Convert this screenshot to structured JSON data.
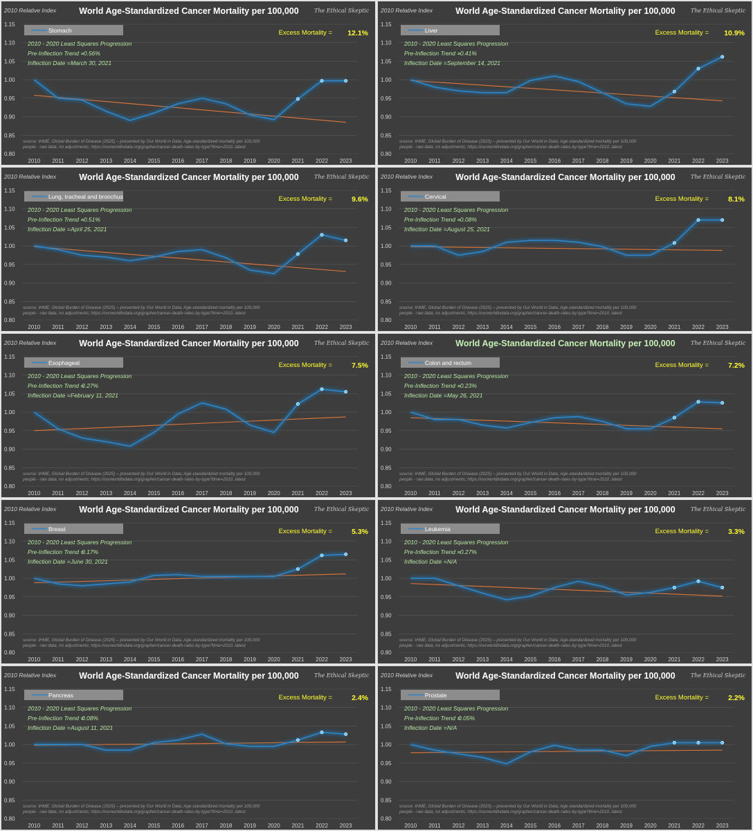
{
  "colors": {
    "panel_bg": "#3d3d3d",
    "grid": "#595959",
    "series": "#2e86c8",
    "series_glow": "#1f6fa8",
    "marker": "#5ec8ff",
    "trend": "#e2773a",
    "excess": "#ffff33",
    "note": "#b7e6a3"
  },
  "common": {
    "yaxis_title": "2010 Relative Index",
    "brand": "The Ethical Skeptic",
    "excess_label": "Excess Mortality =",
    "method": "2010 - 2020 Least Squares Progression",
    "trend_prefix": "Pre-Inflection Trend =",
    "inflection_prefix": "Inflection Date =",
    "source_line1": "source: IHME, Global Burden of Disease (2025) – presented by Our World in Data; Age-standardized mortality per 100,000",
    "source_line2": "people - raw data, no adjustments; https://ourworldindata.org/grapher/cancer-death-rates-by-type?time=2010..latest"
  },
  "chart_data": [
    {
      "type": "line",
      "title": "World Age-Standardized Cancer Mortality per 100,000",
      "title_color": "#ffffff",
      "series_name": "Stomach",
      "ylabel": "2010 Relative Index",
      "x": [
        "2010",
        "2011",
        "2012",
        "2013",
        "2014",
        "2015",
        "2016",
        "2017",
        "2018",
        "2019",
        "2020",
        "2021",
        "2022",
        "2023"
      ],
      "values": [
        1.0,
        0.95,
        0.945,
        0.915,
        0.89,
        0.91,
        0.935,
        0.95,
        0.935,
        0.905,
        0.892,
        0.948,
        0.997,
        0.997
      ],
      "markers_from_index": 11,
      "trend": [
        0.958,
        0.885
      ],
      "excess": "12.1%",
      "pre_trend": "-0.56%",
      "inflection_date": "March 30, 2021",
      "ylim": [
        0.8,
        1.15
      ],
      "yticks": [
        "0.80",
        "0.85",
        "0.90",
        "0.95",
        "1.00",
        "1.05",
        "1.10",
        "1.15"
      ]
    },
    {
      "type": "line",
      "title": "World Age-Standardized Cancer Mortality per 100,000",
      "title_color": "#ffffff",
      "series_name": "Liver",
      "ylabel": "2010 Relative Index",
      "x": [
        "2010",
        "2011",
        "2012",
        "2013",
        "2014",
        "2015",
        "2016",
        "2017",
        "2018",
        "2019",
        "2020",
        "2021",
        "2022",
        "2023"
      ],
      "values": [
        1.0,
        0.98,
        0.97,
        0.965,
        0.965,
        0.998,
        1.01,
        0.995,
        0.965,
        0.935,
        0.928,
        0.968,
        1.03,
        1.062
      ],
      "markers_from_index": 11,
      "trend": [
        0.998,
        0.943
      ],
      "excess": "10.9%",
      "pre_trend": "-0.41%",
      "inflection_date": "September 14, 2021",
      "ylim": [
        0.8,
        1.15
      ],
      "yticks": [
        "0.80",
        "0.85",
        "0.90",
        "0.95",
        "1.00",
        "1.05",
        "1.10",
        "1.15"
      ]
    },
    {
      "type": "line",
      "title": "World Age-Standardized Cancer Mortality per 100,000",
      "title_color": "#ffffff",
      "series_name": "Lung, tracheal and bronchus",
      "ylabel": "2010 Relative Index",
      "x": [
        "2010",
        "2011",
        "2012",
        "2013",
        "2014",
        "2015",
        "2016",
        "2017",
        "2018",
        "2019",
        "2020",
        "2021",
        "2022",
        "2023"
      ],
      "values": [
        1.0,
        0.99,
        0.975,
        0.97,
        0.96,
        0.97,
        0.985,
        0.99,
        0.968,
        0.935,
        0.925,
        0.978,
        1.03,
        1.015
      ],
      "markers_from_index": 11,
      "trend": [
        0.998,
        0.931
      ],
      "excess": "9.6%",
      "pre_trend": "-0.51%",
      "inflection_date": "April 25, 2021",
      "ylim": [
        0.8,
        1.15
      ],
      "yticks": [
        "0.80",
        "0.85",
        "0.90",
        "0.95",
        "1.00",
        "1.05",
        "1.10",
        "1.15"
      ]
    },
    {
      "type": "line",
      "title": "World Age-Standardized Cancer Mortality per 100,000",
      "title_color": "#ffffff",
      "series_name": "Cervical",
      "ylabel": "2010 Relative Index",
      "x": [
        "2010",
        "2011",
        "2012",
        "2013",
        "2014",
        "2015",
        "2016",
        "2017",
        "2018",
        "2019",
        "2020",
        "2021",
        "2022",
        "2023"
      ],
      "values": [
        1.0,
        1.0,
        0.975,
        0.985,
        1.01,
        1.015,
        1.015,
        1.01,
        0.998,
        0.975,
        0.975,
        1.008,
        1.07,
        1.07
      ],
      "markers_from_index": 11,
      "trend": [
        0.998,
        0.988
      ],
      "excess": "8.1%",
      "pre_trend": "-0.08%",
      "inflection_date": "August 25, 2021",
      "ylim": [
        0.8,
        1.15
      ],
      "yticks": [
        "0.80",
        "0.85",
        "0.90",
        "0.95",
        "1.00",
        "1.05",
        "1.10",
        "1.15"
      ]
    },
    {
      "type": "line",
      "title": "World Age-Standardized Cancer Mortality per 100,000",
      "title_color": "#ffffff",
      "series_name": "Esophageal",
      "ylabel": "2010 Relative Index",
      "x": [
        "2010",
        "2011",
        "2012",
        "2013",
        "2014",
        "2015",
        "2016",
        "2017",
        "2018",
        "2019",
        "2020",
        "2021",
        "2022",
        "2023"
      ],
      "values": [
        1.0,
        0.955,
        0.93,
        0.92,
        0.908,
        0.945,
        0.995,
        1.025,
        1.008,
        0.965,
        0.945,
        1.022,
        1.062,
        1.055
      ],
      "markers_from_index": 11,
      "trend": [
        0.95,
        0.987
      ],
      "excess": "7.5%",
      "pre_trend": "0.27%",
      "inflection_date": "February 11, 2021",
      "ylim": [
        0.8,
        1.15
      ],
      "yticks": [
        "0.80",
        "0.85",
        "0.90",
        "0.95",
        "1.00",
        "1.05",
        "1.10",
        "1.15"
      ]
    },
    {
      "type": "line",
      "title": "World Age-Standardized Cancer Mortality per 100,000",
      "title_color": "#c6efb6",
      "series_name": "Colon and rectum",
      "ylabel": "2010 Relative Index",
      "x": [
        "2010",
        "2011",
        "2012",
        "2013",
        "2014",
        "2015",
        "2016",
        "2017",
        "2018",
        "2019",
        "2020",
        "2021",
        "2022",
        "2023"
      ],
      "values": [
        1.0,
        0.98,
        0.98,
        0.965,
        0.957,
        0.972,
        0.985,
        0.988,
        0.975,
        0.955,
        0.955,
        0.985,
        1.028,
        1.025
      ],
      "markers_from_index": 11,
      "trend": [
        0.985,
        0.955
      ],
      "excess": "7.2%",
      "pre_trend": "-0.23%",
      "inflection_date": "May 26, 2021",
      "ylim": [
        0.8,
        1.15
      ],
      "yticks": [
        "0.80",
        "0.85",
        "0.90",
        "0.95",
        "1.00",
        "1.05",
        "1.10",
        "1.15"
      ]
    },
    {
      "type": "line",
      "title": "World Age-Standardized Cancer Mortality per 100,000",
      "title_color": "#ffffff",
      "series_name": "Breast",
      "ylabel": "2010 Relative Index",
      "x": [
        "2010",
        "2011",
        "2012",
        "2013",
        "2014",
        "2015",
        "2016",
        "2017",
        "2018",
        "2019",
        "2020",
        "2021",
        "2022",
        "2023"
      ],
      "values": [
        1.0,
        0.985,
        0.98,
        0.985,
        0.99,
        1.008,
        1.01,
        1.005,
        1.005,
        1.005,
        1.005,
        1.025,
        1.062,
        1.065
      ],
      "markers_from_index": 11,
      "trend": [
        0.988,
        1.012
      ],
      "excess": "5.3%",
      "pre_trend": "0.17%",
      "inflection_date": "June 30, 2021",
      "ylim": [
        0.8,
        1.15
      ],
      "yticks": [
        "0.80",
        "0.85",
        "0.90",
        "0.95",
        "1.00",
        "1.05",
        "1.10",
        "1.15"
      ]
    },
    {
      "type": "line",
      "title": "World Age-Standardized Cancer Mortality per 100,000",
      "title_color": "#ffffff",
      "series_name": "Leukemia",
      "ylabel": "2010 Relative Index",
      "x": [
        "2010",
        "2011",
        "2012",
        "2013",
        "2014",
        "2015",
        "2016",
        "2017",
        "2018",
        "2019",
        "2020",
        "2021",
        "2022",
        "2023"
      ],
      "values": [
        1.0,
        1.0,
        0.98,
        0.96,
        0.942,
        0.952,
        0.975,
        0.992,
        0.978,
        0.955,
        0.962,
        0.975,
        0.992,
        0.975
      ],
      "markers_from_index": 11,
      "trend": [
        0.986,
        0.952
      ],
      "excess": "3.3%",
      "pre_trend": "-0.27%",
      "inflection_date": "N/A",
      "ylim": [
        0.8,
        1.15
      ],
      "yticks": [
        "0.80",
        "0.85",
        "0.90",
        "0.95",
        "1.00",
        "1.05",
        "1.10",
        "1.15"
      ]
    },
    {
      "type": "line",
      "title": "World Age-Standardized Cancer Mortality per 100,000",
      "title_color": "#ffffff",
      "series_name": "Pancreas",
      "ylabel": "2010 Relative Index",
      "x": [
        "2010",
        "2011",
        "2012",
        "2013",
        "2014",
        "2015",
        "2016",
        "2017",
        "2018",
        "2019",
        "2020",
        "2021",
        "2022",
        "2023"
      ],
      "values": [
        1.0,
        1.0,
        1.0,
        0.985,
        0.985,
        1.005,
        1.012,
        1.028,
        1.002,
        0.995,
        0.995,
        1.012,
        1.033,
        1.028
      ],
      "markers_from_index": 11,
      "trend": [
        0.998,
        1.007
      ],
      "excess": "2.4%",
      "pre_trend": "0.08%",
      "inflection_date": "August 11, 2021",
      "ylim": [
        0.8,
        1.15
      ],
      "yticks": [
        "0.80",
        "0.85",
        "0.90",
        "0.95",
        "1.00",
        "1.05",
        "1.10",
        "1.15"
      ]
    },
    {
      "type": "line",
      "title": "World Age-Standardized Cancer Mortality per 100,000",
      "title_color": "#ffffff",
      "series_name": "Prostate",
      "ylabel": "2010 Relative Index",
      "x": [
        "2010",
        "2011",
        "2012",
        "2013",
        "2014",
        "2015",
        "2016",
        "2017",
        "2018",
        "2019",
        "2020",
        "2021",
        "2022",
        "2023"
      ],
      "values": [
        1.0,
        0.985,
        0.975,
        0.965,
        0.948,
        0.98,
        0.998,
        0.985,
        0.985,
        0.97,
        0.995,
        1.005,
        1.005,
        1.005
      ],
      "markers_from_index": 11,
      "trend": [
        0.978,
        0.985
      ],
      "excess": "2.2%",
      "pre_trend": "0.05%",
      "inflection_date": "N/A",
      "ylim": [
        0.8,
        1.15
      ],
      "yticks": [
        "0.80",
        "0.85",
        "0.90",
        "0.95",
        "1.00",
        "1.05",
        "1.10",
        "1.15"
      ]
    }
  ]
}
